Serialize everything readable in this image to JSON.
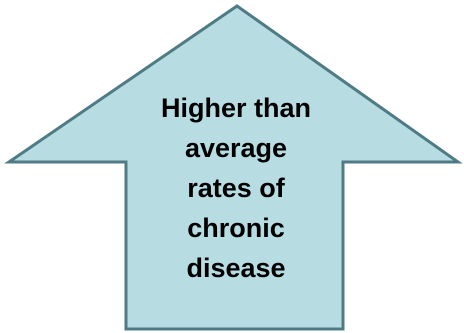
{
  "arrow": {
    "fill_color": "#b7dde3",
    "stroke_color": "#4f7b84"
  },
  "caption_lines": [
    "Higher than",
    "average",
    "rates of",
    "chronic",
    "disease"
  ]
}
